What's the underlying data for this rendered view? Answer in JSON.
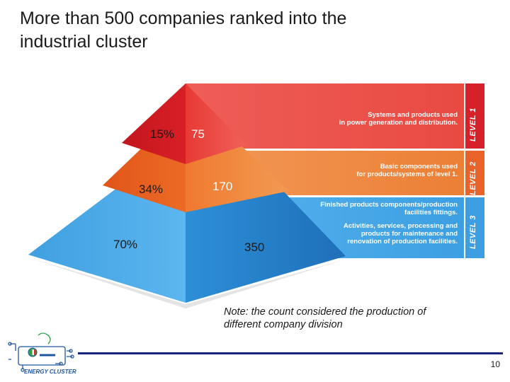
{
  "slide": {
    "title_line1": "More than 500 companies ranked into the",
    "title_line2": "industrial cluster",
    "page_number": "10"
  },
  "levels": [
    {
      "tag": "LEVEL 1",
      "color": "#e8524a",
      "percent": "15%",
      "count": "75",
      "description_lines": [
        "Systems and products used",
        "in power generation and distribution."
      ]
    },
    {
      "tag": "LEVEL 2",
      "color": "#ee8a42",
      "percent": "34%",
      "count": "170",
      "description_lines": [
        "Basic components used",
        "for products/systems of level 1."
      ]
    },
    {
      "tag": "LEVEL 3",
      "color": "#4aa8e6",
      "percent": "70%",
      "count": "350",
      "description_lines": [
        "Finished products components/production",
        "facilities fittings."
      ],
      "description_lines_2": [
        "Activities, services, processing and",
        "products for maintenance and",
        "renovation of production facilities."
      ]
    }
  ],
  "note": {
    "line1": "Note: the count considered the production of",
    "line2": "different company division"
  },
  "logo": {
    "text": "ENERGY CLUSTER",
    "colors": {
      "blue": "#1e56a0",
      "green": "#2e9e48",
      "red": "#d0312d"
    }
  }
}
